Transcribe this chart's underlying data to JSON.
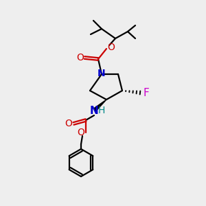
{
  "background_color": "#eeeeee",
  "atom_colors": {
    "C": "#000000",
    "N": "#0000cc",
    "O": "#cc0000",
    "F": "#cc00cc",
    "H": "#008888"
  },
  "figsize": [
    3.0,
    3.0
  ],
  "dpi": 100
}
